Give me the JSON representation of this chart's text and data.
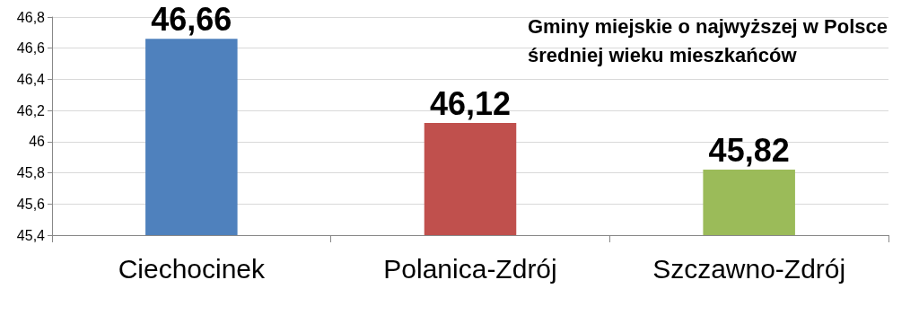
{
  "chart_data": {
    "type": "bar",
    "title": "Gminy miejskie o najwyższej w Polsce\nśredniej wieku mieszkańców",
    "categories": [
      "Ciechocinek",
      "Polanica-Zdrój",
      "Szczawno-Zdrój"
    ],
    "values": [
      46.66,
      46.12,
      45.82
    ],
    "colors": [
      "#4f81bd",
      "#c0504d",
      "#9bbb59"
    ],
    "value_labels": [
      "46,66",
      "46,12",
      "45,82"
    ],
    "ylim": [
      45.4,
      46.8
    ],
    "yticks": [
      {
        "value": 45.4,
        "label": "45,4"
      },
      {
        "value": 45.6,
        "label": "45,6"
      },
      {
        "value": 45.8,
        "label": "45,8"
      },
      {
        "value": 46,
        "label": "46"
      },
      {
        "value": 46.2,
        "label": "46,2"
      },
      {
        "value": 46.4,
        "label": "46,4"
      },
      {
        "value": 46.6,
        "label": "46,6"
      },
      {
        "value": 46.8,
        "label": "46,8"
      }
    ],
    "grid": "y"
  }
}
